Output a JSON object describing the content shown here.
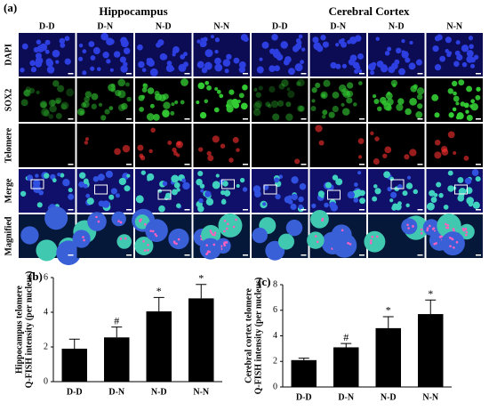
{
  "panel_a": {
    "label": "(a)",
    "groups": [
      "Hippocampus",
      "Cerebral Cortex"
    ],
    "columns": [
      "D-D",
      "D-N",
      "N-D",
      "N-N",
      "D-D",
      "D-N",
      "N-D",
      "N-N"
    ],
    "rows": [
      "DAPI",
      "SOX2",
      "Telomere",
      "Merge",
      "Magnified"
    ]
  },
  "chart_data": [
    {
      "type": "bar",
      "panel_label": "(b)",
      "ylabel": [
        "Hippocampus telomere",
        "Q-FISH intensity (per nucleus)"
      ],
      "categories": [
        "D-D",
        "D-N",
        "N-D",
        "N-N"
      ],
      "values": [
        1.9,
        2.55,
        4.05,
        4.8
      ],
      "errors": [
        0.55,
        0.6,
        0.8,
        0.8
      ],
      "annotations": [
        null,
        "#",
        "*",
        "*"
      ],
      "color": "#000000",
      "ylim": [
        0,
        6
      ],
      "yticks": [
        0,
        2,
        4,
        6
      ]
    },
    {
      "type": "bar",
      "panel_label": "(c)",
      "ylabel": [
        "Cerebral cortex telomere",
        "Q-FISH intensity (per nucleus)"
      ],
      "categories": [
        "D-D",
        "D-N",
        "N-D",
        "N-N"
      ],
      "values": [
        2.1,
        3.1,
        4.6,
        5.7
      ],
      "errors": [
        0.15,
        0.3,
        0.9,
        1.1
      ],
      "annotations": [
        null,
        "#",
        "*",
        "*"
      ],
      "color": "#000000",
      "ylim": [
        0,
        8
      ],
      "yticks": [
        0,
        2,
        4,
        6,
        8
      ]
    }
  ]
}
